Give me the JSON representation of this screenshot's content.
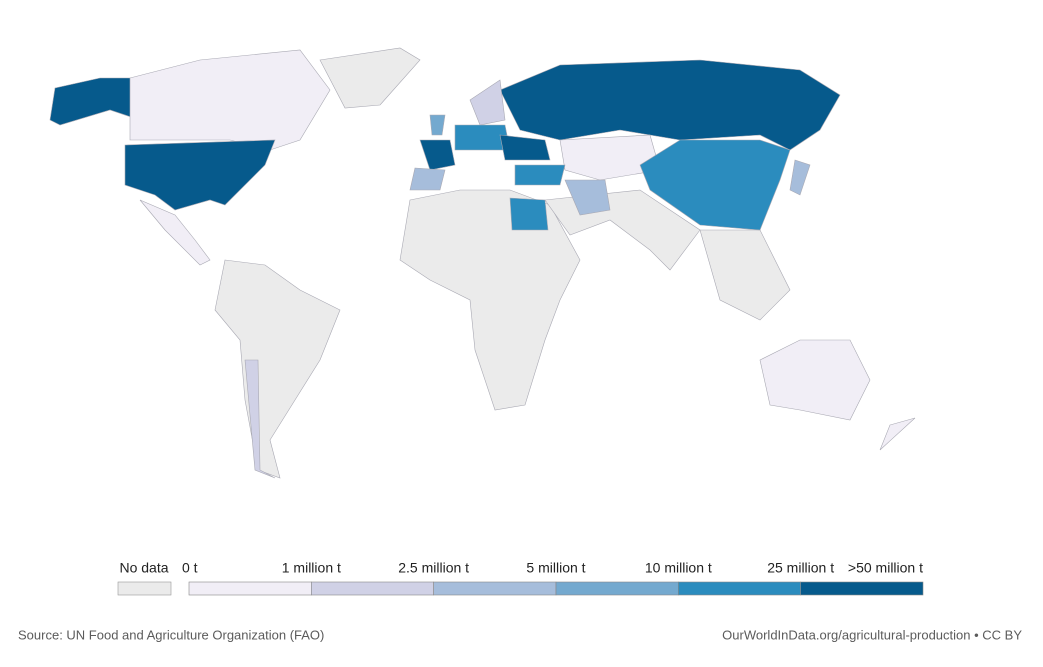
{
  "legend": {
    "no_data": {
      "label": "No data",
      "color": "#ebebeb"
    },
    "ticks": [
      "0 t",
      "1 million t",
      "2.5 million t",
      "5 million t",
      "10 million t",
      "25 million t",
      ">50 million t"
    ],
    "colors": [
      "#f1eef6",
      "#d0d1e6",
      "#a6bddb",
      "#74a9cf",
      "#2b8cbe",
      "#065a8c"
    ]
  },
  "footer": {
    "source": "Source: UN Food and Agriculture Organization (FAO)",
    "url": "OurWorldInData.org/agricultural-production • CC BY"
  }
}
